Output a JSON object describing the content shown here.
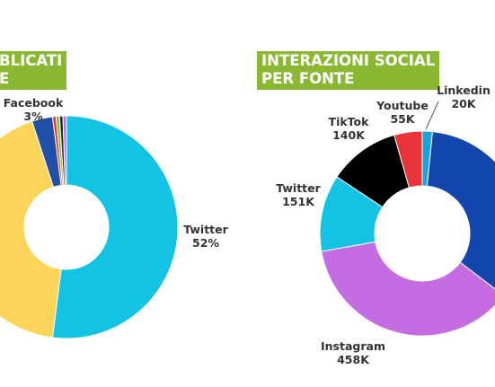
{
  "left_panel": {
    "title_lines": [
      "BLICATI",
      "E"
    ]
  },
  "right_panel": {
    "title_lines": [
      "INTERAZIONI SOCIAL",
      "PER FONTE"
    ]
  },
  "chart_data": [
    {
      "type": "pie",
      "title": "",
      "slices": [
        {
          "label": "Twitter",
          "value_text": "52%",
          "value": 52,
          "color": "#12c3e4"
        },
        {
          "label": "",
          "value_text": "",
          "value": 43,
          "color": "#fbd55a"
        },
        {
          "label": "Facebook",
          "value_text": "3%",
          "value": 3,
          "color": "#1f4fa7"
        },
        {
          "label": "",
          "value_text": "",
          "value": 0.5,
          "color": "#e8353a"
        },
        {
          "label": "",
          "value_text": "",
          "value": 0.5,
          "color": "#8bc03f"
        },
        {
          "label": "",
          "value_text": "",
          "value": 0.5,
          "color": "#2c2c2c"
        },
        {
          "label": "",
          "value_text": "",
          "value": 0.5,
          "color": "#c46de3"
        }
      ]
    },
    {
      "type": "pie",
      "title": "",
      "slices": [
        {
          "label": "Linkedin",
          "value_text": "20K",
          "value": 20,
          "color": "#1ba2d8"
        },
        {
          "label": "",
          "value_text": "",
          "value": 420,
          "color": "#1447ad"
        },
        {
          "label": "Instagram",
          "value_text": "458K",
          "value": 458,
          "color": "#c46de3"
        },
        {
          "label": "Twitter",
          "value_text": "151K",
          "value": 151,
          "color": "#12c3e4"
        },
        {
          "label": "TikTok",
          "value_text": "140K",
          "value": 140,
          "color": "#000000"
        },
        {
          "label": "Youtube",
          "value_text": "55K",
          "value": 55,
          "color": "#e8353a"
        }
      ]
    }
  ]
}
